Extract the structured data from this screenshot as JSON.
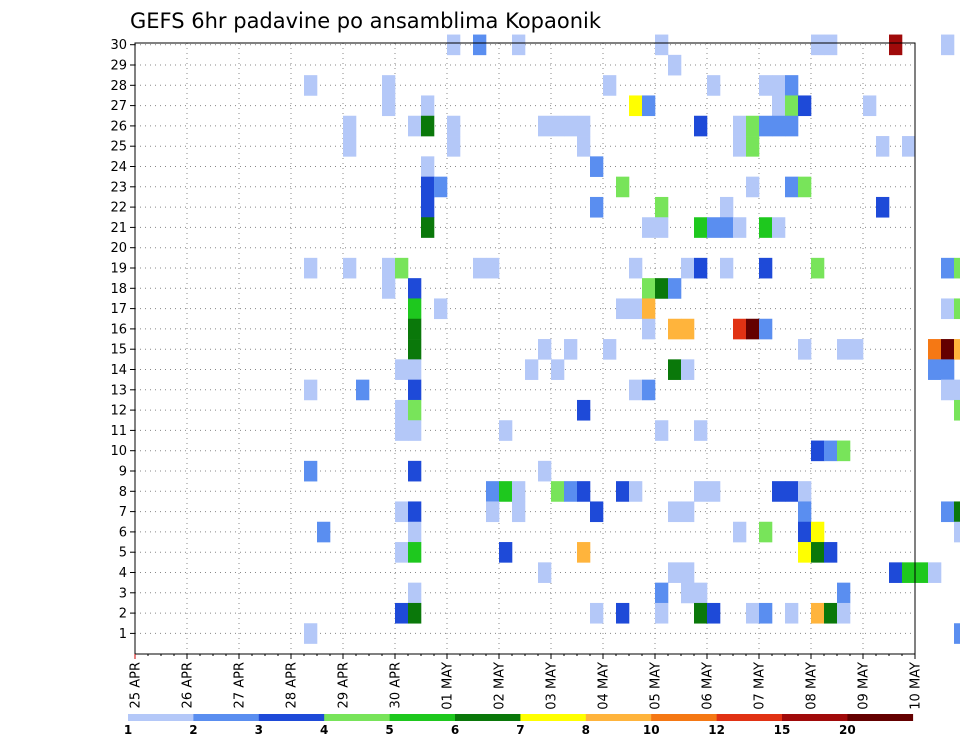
{
  "chart_data": {
    "type": "heatmap",
    "title": "GEFS 6hr padavine po ansamblima Kopaonik",
    "x_tick_labels": [
      "25 APR",
      "26 APR",
      "27 APR",
      "28 APR",
      "29 APR",
      "30 APR",
      "01 MAY",
      "02 MAY",
      "03 MAY",
      "04 MAY",
      "05 MAY",
      "06 MAY",
      "07 MAY",
      "08 MAY",
      "09 MAY",
      "10 MAY"
    ],
    "y_range": [
      1,
      30
    ],
    "y_tick_labels": [
      "1",
      "2",
      "3",
      "4",
      "5",
      "6",
      "7",
      "8",
      "9",
      "10",
      "11",
      "12",
      "13",
      "14",
      "15",
      "16",
      "17",
      "18",
      "19",
      "20",
      "21",
      "22",
      "23",
      "24",
      "25",
      "26",
      "27",
      "28",
      "29",
      "30"
    ],
    "x_range_steps": [
      0,
      60
    ],
    "grid": true,
    "colorbar": {
      "labels": [
        "1",
        "2",
        "3",
        "4",
        "5",
        "6",
        "7",
        "8",
        "10",
        "12",
        "15",
        "20"
      ],
      "colors": [
        "#b4c8f8",
        "#5a8ef0",
        "#1e4ad8",
        "#78e45a",
        "#1ec81e",
        "#0a780a",
        "#ffff00",
        "#ffb43c",
        "#f57814",
        "#e13214",
        "#a00a0a",
        "#640000"
      ]
    },
    "cells": [
      [
        0,
        24,
        30
      ],
      [
        1,
        26,
        30
      ],
      [
        0,
        29,
        30
      ],
      [
        0,
        40,
        30
      ],
      [
        0,
        52,
        30
      ],
      [
        0,
        53,
        30
      ],
      [
        10,
        58,
        30
      ],
      [
        0,
        62,
        30
      ],
      [
        5,
        73,
        30
      ],
      [
        6,
        74,
        30
      ],
      [
        0,
        82,
        30
      ],
      [
        0,
        87,
        30
      ],
      [
        5,
        88,
        30
      ],
      [
        0,
        41,
        29
      ],
      [
        0,
        71,
        29
      ],
      [
        0,
        13,
        28
      ],
      [
        0,
        19,
        28
      ],
      [
        0,
        36,
        28
      ],
      [
        0,
        44,
        28
      ],
      [
        0,
        48,
        28
      ],
      [
        0,
        49,
        28
      ],
      [
        1,
        50,
        28
      ],
      [
        2,
        88,
        28
      ],
      [
        0,
        89,
        28
      ],
      [
        0,
        19,
        27
      ],
      [
        0,
        22,
        27
      ],
      [
        6,
        38,
        27
      ],
      [
        1,
        39,
        27
      ],
      [
        0,
        49,
        27
      ],
      [
        3,
        50,
        27
      ],
      [
        2,
        51,
        27
      ],
      [
        0,
        56,
        27
      ],
      [
        0,
        78,
        27
      ],
      [
        0,
        16,
        26
      ],
      [
        0,
        21,
        26
      ],
      [
        5,
        22,
        26
      ],
      [
        0,
        24,
        26
      ],
      [
        0,
        31,
        26
      ],
      [
        0,
        32,
        26
      ],
      [
        0,
        33,
        26
      ],
      [
        0,
        34,
        26
      ],
      [
        2,
        43,
        26
      ],
      [
        0,
        46,
        26
      ],
      [
        3,
        47,
        26
      ],
      [
        1,
        48,
        26
      ],
      [
        1,
        49,
        26
      ],
      [
        1,
        50,
        26
      ],
      [
        0,
        16,
        25
      ],
      [
        0,
        24,
        25
      ],
      [
        0,
        34,
        25
      ],
      [
        0,
        46,
        25
      ],
      [
        3,
        47,
        25
      ],
      [
        0,
        57,
        25
      ],
      [
        0,
        59,
        25
      ],
      [
        5,
        82,
        25
      ],
      [
        4,
        83,
        25
      ],
      [
        0,
        84,
        25
      ],
      [
        0,
        22,
        24
      ],
      [
        1,
        35,
        24
      ],
      [
        2,
        22,
        23
      ],
      [
        1,
        23,
        23
      ],
      [
        3,
        37,
        23
      ],
      [
        0,
        47,
        23
      ],
      [
        1,
        50,
        23
      ],
      [
        3,
        51,
        23
      ],
      [
        5,
        66,
        23
      ],
      [
        9,
        67,
        23
      ],
      [
        7,
        68,
        23
      ],
      [
        0,
        69,
        23
      ],
      [
        0,
        70,
        23
      ],
      [
        4,
        71,
        23
      ],
      [
        0,
        72,
        23
      ],
      [
        0,
        73,
        23
      ],
      [
        2,
        22,
        22
      ],
      [
        1,
        35,
        22
      ],
      [
        3,
        40,
        22
      ],
      [
        0,
        45,
        22
      ],
      [
        2,
        57,
        22
      ],
      [
        1,
        76,
        22
      ],
      [
        2,
        77,
        22
      ],
      [
        8,
        78,
        22
      ],
      [
        2,
        79,
        22
      ],
      [
        0,
        80,
        22
      ],
      [
        5,
        22,
        21
      ],
      [
        0,
        39,
        21
      ],
      [
        0,
        40,
        21
      ],
      [
        4,
        43,
        21
      ],
      [
        1,
        44,
        21
      ],
      [
        1,
        45,
        21
      ],
      [
        0,
        46,
        21
      ],
      [
        4,
        48,
        21
      ],
      [
        0,
        49,
        21
      ],
      [
        2,
        76,
        21
      ],
      [
        0,
        77,
        21
      ],
      [
        3,
        79,
        21
      ],
      [
        0,
        80,
        21
      ],
      [
        3,
        86,
        21
      ],
      [
        3,
        87,
        21
      ],
      [
        0,
        13,
        19
      ],
      [
        0,
        16,
        19
      ],
      [
        0,
        19,
        19
      ],
      [
        3,
        20,
        19
      ],
      [
        0,
        26,
        19
      ],
      [
        0,
        27,
        19
      ],
      [
        0,
        38,
        19
      ],
      [
        0,
        42,
        19
      ],
      [
        2,
        43,
        19
      ],
      [
        0,
        45,
        19
      ],
      [
        2,
        48,
        19
      ],
      [
        3,
        52,
        19
      ],
      [
        1,
        62,
        19
      ],
      [
        3,
        63,
        19
      ],
      [
        2,
        64,
        19
      ],
      [
        1,
        65,
        19
      ],
      [
        2,
        66,
        19
      ],
      [
        0,
        19,
        18
      ],
      [
        2,
        21,
        18
      ],
      [
        3,
        39,
        18
      ],
      [
        5,
        40,
        18
      ],
      [
        1,
        41,
        18
      ],
      [
        4,
        21,
        17
      ],
      [
        0,
        23,
        17
      ],
      [
        0,
        37,
        17
      ],
      [
        0,
        38,
        17
      ],
      [
        7,
        39,
        17
      ],
      [
        0,
        62,
        17
      ],
      [
        3,
        63,
        17
      ],
      [
        5,
        21,
        16
      ],
      [
        0,
        39,
        16
      ],
      [
        7,
        41,
        16
      ],
      [
        7,
        42,
        16
      ],
      [
        9,
        46,
        16
      ],
      [
        11,
        47,
        16
      ],
      [
        1,
        48,
        16
      ],
      [
        0,
        69,
        16
      ],
      [
        9,
        70,
        16
      ],
      [
        3,
        71,
        16
      ],
      [
        0,
        72,
        16
      ],
      [
        0,
        85,
        16
      ],
      [
        5,
        21,
        15
      ],
      [
        0,
        31,
        15
      ],
      [
        0,
        33,
        15
      ],
      [
        0,
        36,
        15
      ],
      [
        0,
        51,
        15
      ],
      [
        0,
        54,
        15
      ],
      [
        0,
        55,
        15
      ],
      [
        8,
        61,
        15
      ],
      [
        11,
        62,
        15
      ],
      [
        7,
        63,
        15
      ],
      [
        6,
        64,
        15
      ],
      [
        2,
        65,
        15
      ],
      [
        0,
        66,
        15
      ],
      [
        0,
        20,
        14
      ],
      [
        0,
        21,
        14
      ],
      [
        0,
        30,
        14
      ],
      [
        0,
        32,
        14
      ],
      [
        5,
        41,
        14
      ],
      [
        0,
        42,
        14
      ],
      [
        1,
        61,
        14
      ],
      [
        1,
        62,
        14
      ],
      [
        0,
        13,
        13
      ],
      [
        1,
        17,
        13
      ],
      [
        2,
        21,
        13
      ],
      [
        0,
        38,
        13
      ],
      [
        1,
        39,
        13
      ],
      [
        0,
        62,
        13
      ],
      [
        0,
        63,
        13
      ],
      [
        1,
        67,
        13
      ],
      [
        1,
        78,
        13
      ],
      [
        0,
        20,
        12
      ],
      [
        3,
        21,
        12
      ],
      [
        2,
        34,
        12
      ],
      [
        3,
        63,
        12
      ],
      [
        1,
        88,
        12
      ],
      [
        0,
        20,
        11
      ],
      [
        0,
        21,
        11
      ],
      [
        0,
        28,
        11
      ],
      [
        0,
        40,
        11
      ],
      [
        0,
        43,
        11
      ],
      [
        2,
        52,
        10
      ],
      [
        1,
        53,
        10
      ],
      [
        3,
        54,
        10
      ],
      [
        0,
        77,
        10
      ],
      [
        0,
        80,
        10
      ],
      [
        1,
        81,
        10
      ],
      [
        1,
        89,
        10
      ],
      [
        1,
        13,
        9
      ],
      [
        2,
        21,
        9
      ],
      [
        0,
        31,
        9
      ],
      [
        1,
        27,
        8
      ],
      [
        4,
        28,
        8
      ],
      [
        0,
        29,
        8
      ],
      [
        3,
        32,
        8
      ],
      [
        1,
        33,
        8
      ],
      [
        2,
        34,
        8
      ],
      [
        2,
        37,
        8
      ],
      [
        0,
        38,
        8
      ],
      [
        0,
        43,
        8
      ],
      [
        0,
        44,
        8
      ],
      [
        2,
        49,
        8
      ],
      [
        2,
        50,
        8
      ],
      [
        0,
        51,
        8
      ],
      [
        0,
        80,
        8
      ],
      [
        0,
        81,
        8
      ],
      [
        6,
        84,
        8
      ],
      [
        1,
        85,
        8
      ],
      [
        0,
        89,
        8
      ],
      [
        0,
        20,
        7
      ],
      [
        2,
        21,
        7
      ],
      [
        0,
        27,
        7
      ],
      [
        0,
        29,
        7
      ],
      [
        2,
        35,
        7
      ],
      [
        0,
        41,
        7
      ],
      [
        0,
        42,
        7
      ],
      [
        1,
        51,
        7
      ],
      [
        1,
        62,
        7
      ],
      [
        5,
        63,
        7
      ],
      [
        1,
        14,
        6
      ],
      [
        0,
        21,
        6
      ],
      [
        0,
        46,
        6
      ],
      [
        3,
        48,
        6
      ],
      [
        2,
        51,
        6
      ],
      [
        6,
        52,
        6
      ],
      [
        0,
        63,
        6
      ],
      [
        0,
        64,
        6
      ],
      [
        5,
        65,
        6
      ],
      [
        9,
        66,
        6
      ],
      [
        0,
        67,
        6
      ],
      [
        0,
        20,
        5
      ],
      [
        4,
        21,
        5
      ],
      [
        2,
        28,
        5
      ],
      [
        7,
        34,
        5
      ],
      [
        6,
        51,
        5
      ],
      [
        5,
        52,
        5
      ],
      [
        2,
        53,
        5
      ],
      [
        0,
        67,
        5
      ],
      [
        0,
        31,
        4
      ],
      [
        0,
        41,
        4
      ],
      [
        0,
        42,
        4
      ],
      [
        2,
        58,
        4
      ],
      [
        4,
        59,
        4
      ],
      [
        4,
        60,
        4
      ],
      [
        0,
        61,
        4
      ],
      [
        1,
        66,
        4
      ],
      [
        1,
        67,
        4
      ],
      [
        0,
        21,
        3
      ],
      [
        1,
        40,
        3
      ],
      [
        0,
        42,
        3
      ],
      [
        0,
        43,
        3
      ],
      [
        1,
        54,
        3
      ],
      [
        3,
        67,
        3
      ],
      [
        2,
        20,
        2
      ],
      [
        5,
        21,
        2
      ],
      [
        0,
        35,
        2
      ],
      [
        2,
        37,
        2
      ],
      [
        0,
        40,
        2
      ],
      [
        5,
        43,
        2
      ],
      [
        2,
        44,
        2
      ],
      [
        0,
        47,
        2
      ],
      [
        1,
        48,
        2
      ],
      [
        0,
        50,
        2
      ],
      [
        7,
        52,
        2
      ],
      [
        5,
        53,
        2
      ],
      [
        0,
        54,
        2
      ],
      [
        0,
        76,
        2
      ],
      [
        0,
        77,
        2
      ],
      [
        0,
        78,
        2
      ],
      [
        0,
        13,
        1
      ],
      [
        1,
        63,
        1
      ],
      [
        0,
        64,
        1
      ]
    ]
  }
}
